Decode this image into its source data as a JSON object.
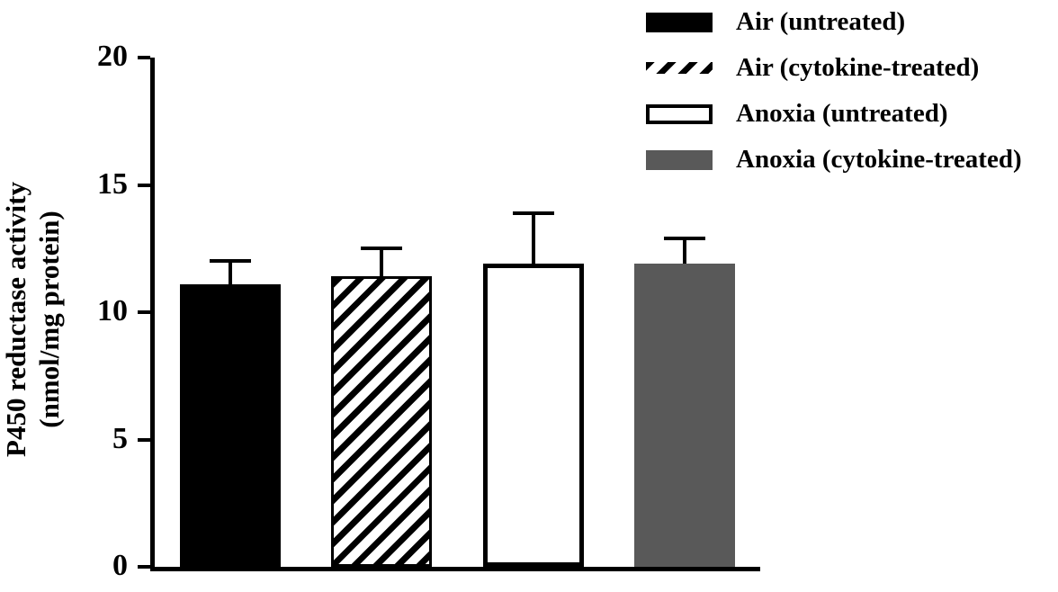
{
  "chart_data": {
    "type": "bar",
    "title": "",
    "xlabel": "",
    "ylabel": "P450 reductase activity (nmol/mg protein)",
    "ylabel_line1": "P450 reductase activity",
    "ylabel_line2": "(nmol/mg protein)",
    "ylim": [
      0,
      20
    ],
    "yticks": [
      0,
      5,
      10,
      15,
      20
    ],
    "grid": false,
    "legend_position": "top-right",
    "categories": [
      "Air (untreated)",
      "Air (cytokine-treated)",
      "Anoxia (untreated)",
      "Anoxia (cytokine-treated)"
    ],
    "series": [
      {
        "name": "Air (untreated)",
        "value": 11.1,
        "error": 0.9,
        "style": "solid-black"
      },
      {
        "name": "Air (cytokine-treated)",
        "value": 11.4,
        "error": 1.1,
        "style": "hatched"
      },
      {
        "name": "Anoxia (untreated)",
        "value": 11.9,
        "error": 2.0,
        "style": "white-outline"
      },
      {
        "name": "Anoxia (cytokine-treated)",
        "value": 11.9,
        "error": 1.0,
        "style": "gray"
      }
    ],
    "legend": [
      {
        "label": "Air (untreated)",
        "swatch": "solid-black"
      },
      {
        "label": "Air (cytokine-treated)",
        "swatch": "hatched"
      },
      {
        "label": "Anoxia (untreated)",
        "swatch": "white-outline"
      },
      {
        "label": "Anoxia (cytokine-treated)",
        "swatch": "gray"
      }
    ],
    "colors": {
      "black": "#000000",
      "gray": "#595959",
      "white": "#ffffff"
    }
  }
}
